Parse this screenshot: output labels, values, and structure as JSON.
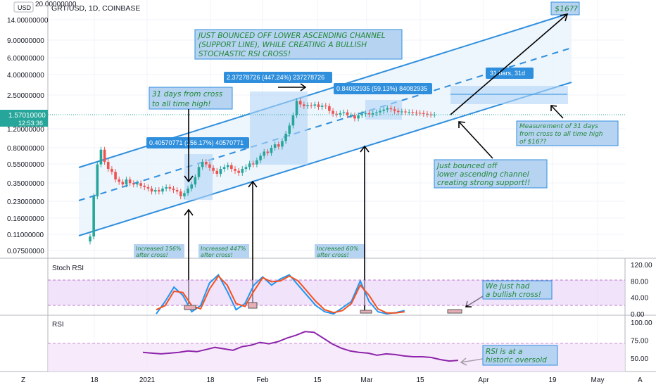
{
  "header": {
    "symbol_title": "GRT/USD, 1D, COINBASE",
    "currency_badge": "USD",
    "top_price": "20.00000000"
  },
  "price_axis": {
    "ticks": [
      "14.00000000",
      "9.00000000",
      "6.00000000",
      "4.00000000",
      "2.50000000",
      "1.20000000",
      "0.80000000",
      "0.55000000",
      "0.35000000",
      "0.23000000",
      "0.16000000",
      "0.11000000",
      "0.07500000"
    ],
    "current_price": "1.57010000",
    "countdown": "12:53:36"
  },
  "time_axis": {
    "labels": [
      "18",
      "2021",
      "18",
      "Feb",
      "15",
      "Mar",
      "15",
      "Apr",
      "19",
      "May"
    ]
  },
  "corner_icons": {
    "left": "Z",
    "right": "A"
  },
  "measure_labels": {
    "m1": "0.40570771 (156.17%) 40570771",
    "m2": "2.37278726 (447.24%) 237278726",
    "m3": "0.84082935 (59.13%) 84082935",
    "m4": "31 bars, 31d"
  },
  "annotations": {
    "bounced_line1": "JUST BOUNCED OFF LOWER ASCENDING CHANNEL",
    "bounced_line2": "(SUPPORT LINE), WHILE CREATING A BULLISH",
    "bounced_line3": "STOCHASTIC RSI CROSS!",
    "target": "$16??",
    "days_line1": "31 days from cross",
    "days_line2": "to all time high!",
    "measure_line1": "Measurement of 31 days",
    "measure_line2": "from cross to all time high",
    "measure_line3": "of $16??",
    "support_line1": "Just bounced off",
    "support_line2": "lower ascending channel",
    "support_line3": "creating strong support!!",
    "inc1_line1": "Increased 156%",
    "inc1_line2": "after cross!",
    "inc2_line1": "Increased 447%",
    "inc2_line2": "after cross!",
    "inc3_line1": "Increased 60%",
    "inc3_line2": "after cross!",
    "stoch_note1": "We just had",
    "stoch_note2": "a bullish cross!",
    "rsi_note1": "RSI is at a",
    "rsi_note2": "historic oversold"
  },
  "stoch_panel": {
    "label": "Stoch RSI",
    "ticks": [
      "120.00",
      "80.00",
      "40.00",
      "0.00"
    ]
  },
  "rsi_panel": {
    "label": "RSI",
    "ticks": [
      "100.00",
      "75.00",
      "50.00"
    ]
  },
  "colors": {
    "up": "#26a69a",
    "down": "#ef5350",
    "channel": "#2f8fdd",
    "stoch_k": "#2196f3",
    "stoch_d": "#f4511e",
    "rsi": "#8e24aa",
    "note_text": "#21883a",
    "note_fill": "#b7d3f2",
    "current_price_bg": "#26a69a"
  },
  "chart_data": [
    {
      "type": "candlestick",
      "title": "GRT/USD, 1D, COINBASE",
      "scale": "log",
      "ylim": [
        0.075,
        20
      ],
      "x_range": [
        "2020-12-17",
        "2021-05-01"
      ],
      "series": [
        {
          "name": "GRT/USD",
          "points": [
            [
              "2020-12-17",
              0.12
            ],
            [
              "2020-12-18",
              0.28
            ],
            [
              "2020-12-19",
              0.55
            ],
            [
              "2020-12-20",
              0.75
            ],
            [
              "2020-12-21",
              0.58
            ],
            [
              "2020-12-22",
              0.5
            ],
            [
              "2020-12-23",
              0.47
            ],
            [
              "2020-12-24",
              0.4
            ],
            [
              "2020-12-25",
              0.38
            ],
            [
              "2020-12-26",
              0.36
            ],
            [
              "2020-12-27",
              0.4
            ],
            [
              "2020-12-28",
              0.37
            ],
            [
              "2020-12-29",
              0.36
            ],
            [
              "2020-12-30",
              0.37
            ],
            [
              "2020-12-31",
              0.35
            ],
            [
              "2021-01-01",
              0.34
            ],
            [
              "2021-01-02",
              0.33
            ],
            [
              "2021-01-03",
              0.31
            ],
            [
              "2021-01-04",
              0.32
            ],
            [
              "2021-01-05",
              0.31
            ],
            [
              "2021-01-06",
              0.33
            ],
            [
              "2021-01-07",
              0.34
            ],
            [
              "2021-01-08",
              0.33
            ],
            [
              "2021-01-09",
              0.32
            ],
            [
              "2021-01-10",
              0.31
            ],
            [
              "2021-01-11",
              0.28
            ],
            [
              "2021-01-12",
              0.3
            ],
            [
              "2021-01-13",
              0.33
            ],
            [
              "2021-01-14",
              0.36
            ],
            [
              "2021-01-15",
              0.42
            ],
            [
              "2021-01-16",
              0.52
            ],
            [
              "2021-01-17",
              0.58
            ],
            [
              "2021-01-18",
              0.55
            ],
            [
              "2021-01-19",
              0.51
            ],
            [
              "2021-01-20",
              0.48
            ],
            [
              "2021-01-21",
              0.45
            ],
            [
              "2021-01-22",
              0.5
            ],
            [
              "2021-01-23",
              0.52
            ],
            [
              "2021-01-24",
              0.54
            ],
            [
              "2021-01-25",
              0.5
            ],
            [
              "2021-01-26",
              0.48
            ],
            [
              "2021-01-27",
              0.46
            ],
            [
              "2021-01-28",
              0.5
            ],
            [
              "2021-01-29",
              0.52
            ],
            [
              "2021-01-30",
              0.56
            ],
            [
              "2021-01-31",
              0.55
            ],
            [
              "2021-02-01",
              0.6
            ],
            [
              "2021-02-02",
              0.66
            ],
            [
              "2021-02-03",
              0.72
            ],
            [
              "2021-02-04",
              0.7
            ],
            [
              "2021-02-05",
              0.78
            ],
            [
              "2021-02-06",
              0.84
            ],
            [
              "2021-02-07",
              0.8
            ],
            [
              "2021-02-08",
              0.9
            ],
            [
              "2021-02-09",
              1.05
            ],
            [
              "2021-02-10",
              1.25
            ],
            [
              "2021-02-11",
              1.55
            ],
            [
              "2021-02-12",
              2.1
            ],
            [
              "2021-02-13",
              1.95
            ],
            [
              "2021-02-14",
              1.88
            ],
            [
              "2021-02-15",
              1.92
            ],
            [
              "2021-02-16",
              1.9
            ],
            [
              "2021-02-17",
              1.95
            ],
            [
              "2021-02-18",
              1.85
            ],
            [
              "2021-02-19",
              1.9
            ],
            [
              "2021-02-20",
              1.88
            ],
            [
              "2021-02-21",
              1.7
            ],
            [
              "2021-02-22",
              1.6
            ],
            [
              "2021-02-23",
              1.58
            ],
            [
              "2021-02-24",
              1.62
            ],
            [
              "2021-02-25",
              1.65
            ],
            [
              "2021-02-26",
              1.55
            ],
            [
              "2021-02-27",
              1.55
            ],
            [
              "2021-02-28",
              1.45
            ],
            [
              "2021-03-01",
              1.55
            ],
            [
              "2021-03-02",
              1.6
            ],
            [
              "2021-03-03",
              1.62
            ],
            [
              "2021-03-04",
              1.58
            ],
            [
              "2021-03-05",
              1.62
            ],
            [
              "2021-03-06",
              1.65
            ],
            [
              "2021-03-07",
              1.7
            ],
            [
              "2021-03-08",
              1.75
            ],
            [
              "2021-03-09",
              1.8
            ],
            [
              "2021-03-10",
              1.76
            ],
            [
              "2021-03-11",
              1.7
            ],
            [
              "2021-03-12",
              1.66
            ],
            [
              "2021-03-13",
              1.68
            ],
            [
              "2021-03-14",
              1.65
            ],
            [
              "2021-03-15",
              1.66
            ],
            [
              "2021-03-16",
              1.64
            ],
            [
              "2021-03-17",
              1.63
            ],
            [
              "2021-03-18",
              1.62
            ],
            [
              "2021-03-19",
              1.6
            ],
            [
              "2021-03-20",
              1.58
            ],
            [
              "2021-03-21",
              1.57
            ],
            [
              "2021-03-22",
              1.57
            ]
          ]
        }
      ],
      "overlays": [
        "ascending channel (upper, middle dashed, lower)",
        "measure boxes",
        "arrows"
      ]
    },
    {
      "type": "line",
      "title": "Stoch RSI",
      "ylim": [
        0,
        120
      ],
      "reference_band": [
        20,
        80
      ],
      "series": [
        {
          "name": "%K",
          "points": [
            [
              12,
              0
            ],
            [
              14,
              30
            ],
            [
              16,
              65
            ],
            [
              18,
              45
            ],
            [
              20,
              5
            ],
            [
              22,
              20
            ],
            [
              24,
              75
            ],
            [
              26,
              95
            ],
            [
              28,
              55
            ],
            [
              30,
              10
            ],
            [
              32,
              25
            ],
            [
              34,
              70
            ],
            [
              36,
              90
            ],
            [
              38,
              70
            ],
            [
              40,
              85
            ],
            [
              42,
              95
            ],
            [
              44,
              70
            ],
            [
              46,
              45
            ],
            [
              48,
              20
            ],
            [
              50,
              5
            ],
            [
              52,
              0
            ],
            [
              54,
              15
            ],
            [
              56,
              30
            ],
            [
              58,
              80
            ],
            [
              60,
              30
            ],
            [
              62,
              5
            ],
            [
              64,
              0
            ],
            [
              66,
              3
            ],
            [
              68,
              8
            ]
          ]
        },
        {
          "name": "%D",
          "points": [
            [
              12,
              10
            ],
            [
              14,
              20
            ],
            [
              16,
              55
            ],
            [
              18,
              52
            ],
            [
              20,
              20
            ],
            [
              22,
              12
            ],
            [
              24,
              60
            ],
            [
              26,
              92
            ],
            [
              28,
              70
            ],
            [
              30,
              25
            ],
            [
              32,
              18
            ],
            [
              34,
              55
            ],
            [
              36,
              88
            ],
            [
              38,
              78
            ],
            [
              40,
              80
            ],
            [
              42,
              92
            ],
            [
              44,
              80
            ],
            [
              46,
              55
            ],
            [
              48,
              30
            ],
            [
              50,
              10
            ],
            [
              52,
              3
            ],
            [
              54,
              8
            ],
            [
              56,
              25
            ],
            [
              58,
              70
            ],
            [
              60,
              45
            ],
            [
              62,
              12
            ],
            [
              64,
              2
            ],
            [
              66,
              2
            ],
            [
              68,
              5
            ]
          ]
        }
      ]
    },
    {
      "type": "line",
      "title": "RSI",
      "ylim": [
        40,
        100
      ],
      "reference_band": [
        30,
        70
      ],
      "series": [
        {
          "name": "RSI",
          "points": [
            [
              0,
              58
            ],
            [
              2,
              57
            ],
            [
              4,
              56
            ],
            [
              6,
              57
            ],
            [
              8,
              58
            ],
            [
              10,
              60
            ],
            [
              12,
              59
            ],
            [
              14,
              62
            ],
            [
              16,
              65
            ],
            [
              18,
              63
            ],
            [
              20,
              61
            ],
            [
              22,
              66
            ],
            [
              24,
              68
            ],
            [
              26,
              72
            ],
            [
              28,
              70
            ],
            [
              30,
              73
            ],
            [
              32,
              78
            ],
            [
              34,
              82
            ],
            [
              36,
              87
            ],
            [
              38,
              86
            ],
            [
              40,
              78
            ],
            [
              42,
              70
            ],
            [
              44,
              64
            ],
            [
              46,
              60
            ],
            [
              48,
              58
            ],
            [
              50,
              57
            ],
            [
              52,
              54
            ],
            [
              54,
              56
            ],
            [
              56,
              55
            ],
            [
              58,
              53
            ],
            [
              60,
              52
            ],
            [
              62,
              52
            ],
            [
              64,
              51
            ],
            [
              66,
              48
            ],
            [
              68,
              46
            ],
            [
              70,
              47
            ]
          ]
        }
      ]
    }
  ]
}
